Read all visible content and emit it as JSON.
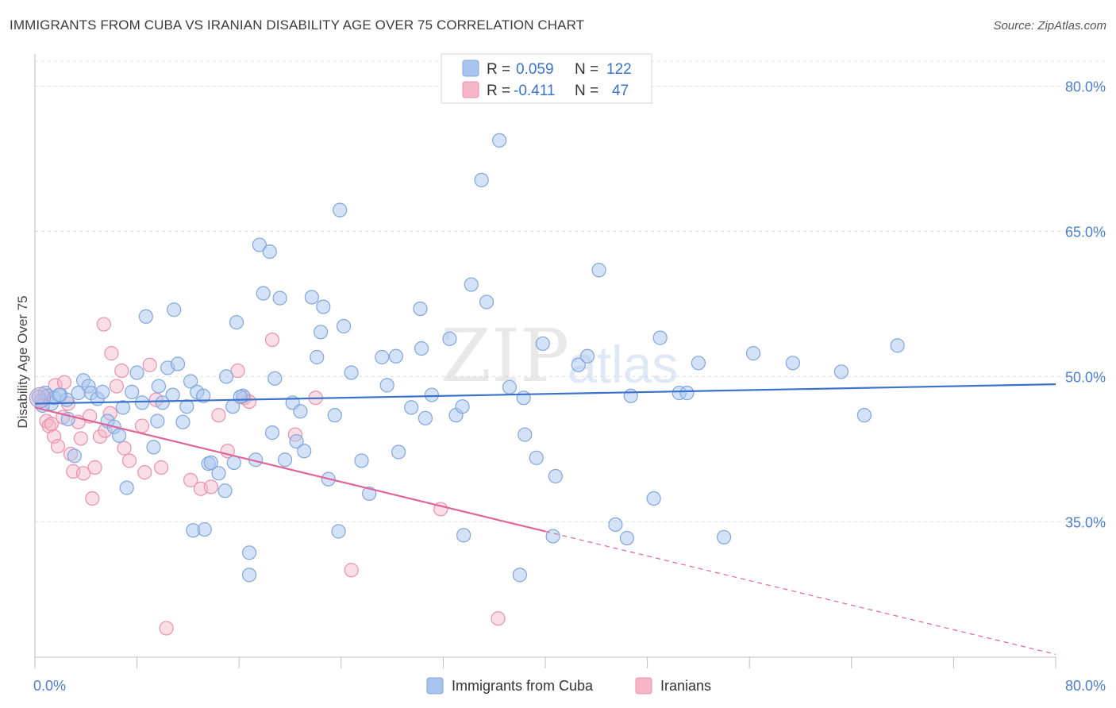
{
  "header": {
    "title": "IMMIGRANTS FROM CUBA VS IRANIAN DISABILITY AGE OVER 75 CORRELATION CHART",
    "source": "Source: ZipAtlas.com"
  },
  "legend": {
    "rows": [
      {
        "r_label": "R =",
        "r_value": "0.059",
        "n_label": "N =",
        "n_value": "122",
        "color": "#a9c5ef"
      },
      {
        "r_label": "R =",
        "r_value": "-0.411",
        "n_label": "N =",
        "n_value": "47",
        "color": "#f5b6c8"
      }
    ]
  },
  "bottom_legend": {
    "items": [
      {
        "label": "Immigrants from Cuba",
        "color": "#a9c5ef"
      },
      {
        "label": "Iranians",
        "color": "#f5b6c8"
      }
    ]
  },
  "watermark": {
    "zip": "ZIP",
    "atlas": "atlas"
  },
  "chart_data": {
    "type": "scatter",
    "title": "IMMIGRANTS FROM CUBA VS IRANIAN DISABILITY AGE OVER 75 CORRELATION CHART",
    "xlabel": "",
    "ylabel": "Disability Age Over 75",
    "xlim": [
      0,
      80
    ],
    "ylim": [
      21,
      83
    ],
    "x_tick_labels": [
      "0.0%",
      "80.0%"
    ],
    "y_ticks": [
      35,
      50,
      65,
      80
    ],
    "y_tick_labels": [
      "35.0%",
      "50.0%",
      "65.0%",
      "80.0%"
    ],
    "grid": true,
    "legend_position": "top-center",
    "colors": {
      "cuba": "#a9c5ef",
      "cuba_stroke": "#7fa6de",
      "cuba_line": "#3a72cc",
      "iran": "#f5b6c8",
      "iran_stroke": "#ec8fae",
      "iran_line": "#e0649a"
    },
    "series": [
      {
        "name": "Immigrants from Cuba",
        "r": 0.059,
        "n": 122,
        "trend": {
          "x0": 0,
          "y0": 47.2,
          "x1": 80,
          "y1": 49.2
        },
        "points": [
          [
            0.5,
            47.5
          ],
          [
            0.8,
            48.3
          ],
          [
            1.0,
            48.0
          ],
          [
            1.3,
            47.2
          ],
          [
            1.5,
            47.8
          ],
          [
            2.0,
            48.1
          ],
          [
            2.5,
            47.6
          ],
          [
            2.6,
            45.6
          ],
          [
            3.1,
            41.8
          ],
          [
            3.8,
            49.6
          ],
          [
            4.2,
            49.0
          ],
          [
            4.4,
            48.3
          ],
          [
            4.9,
            47.7
          ],
          [
            5.3,
            48.4
          ],
          [
            5.7,
            45.4
          ],
          [
            6.2,
            44.8
          ],
          [
            6.6,
            43.9
          ],
          [
            6.9,
            46.8
          ],
          [
            7.2,
            38.5
          ],
          [
            7.6,
            48.4
          ],
          [
            8.0,
            50.4
          ],
          [
            8.4,
            47.3
          ],
          [
            8.7,
            56.2
          ],
          [
            9.3,
            42.7
          ],
          [
            9.6,
            45.4
          ],
          [
            10.0,
            47.3
          ],
          [
            10.4,
            50.9
          ],
          [
            10.8,
            48.1
          ],
          [
            10.9,
            56.9
          ],
          [
            11.2,
            51.3
          ],
          [
            11.6,
            45.3
          ],
          [
            11.9,
            46.9
          ],
          [
            12.2,
            49.5
          ],
          [
            12.4,
            34.1
          ],
          [
            12.7,
            48.4
          ],
          [
            13.2,
            48.0
          ],
          [
            13.3,
            34.2
          ],
          [
            13.6,
            41.0
          ],
          [
            13.8,
            41.1
          ],
          [
            14.4,
            40.0
          ],
          [
            14.9,
            38.2
          ],
          [
            15.0,
            50.0
          ],
          [
            15.5,
            46.9
          ],
          [
            15.6,
            41.1
          ],
          [
            15.8,
            55.6
          ],
          [
            16.3,
            48.0
          ],
          [
            16.8,
            31.8
          ],
          [
            16.8,
            29.5
          ],
          [
            17.3,
            41.4
          ],
          [
            17.6,
            63.6
          ],
          [
            17.9,
            58.6
          ],
          [
            18.4,
            62.9
          ],
          [
            18.6,
            44.2
          ],
          [
            18.8,
            49.8
          ],
          [
            19.2,
            58.1
          ],
          [
            19.6,
            41.4
          ],
          [
            20.2,
            47.3
          ],
          [
            20.5,
            43.3
          ],
          [
            20.8,
            46.4
          ],
          [
            21.1,
            42.3
          ],
          [
            21.7,
            58.2
          ],
          [
            22.1,
            52.0
          ],
          [
            22.4,
            54.6
          ],
          [
            22.6,
            57.2
          ],
          [
            23.0,
            39.4
          ],
          [
            23.5,
            46.0
          ],
          [
            23.8,
            34.0
          ],
          [
            23.9,
            67.2
          ],
          [
            24.2,
            55.2
          ],
          [
            24.8,
            50.4
          ],
          [
            25.6,
            41.3
          ],
          [
            26.2,
            37.9
          ],
          [
            27.2,
            52.0
          ],
          [
            27.6,
            49.1
          ],
          [
            28.3,
            52.1
          ],
          [
            28.5,
            42.2
          ],
          [
            29.5,
            46.8
          ],
          [
            30.2,
            57.0
          ],
          [
            30.3,
            52.9
          ],
          [
            30.6,
            45.7
          ],
          [
            31.1,
            48.1
          ],
          [
            32.5,
            53.9
          ],
          [
            33.0,
            46.0
          ],
          [
            33.5,
            46.9
          ],
          [
            33.6,
            33.6
          ],
          [
            34.2,
            59.5
          ],
          [
            35.0,
            70.3
          ],
          [
            35.4,
            57.7
          ],
          [
            36.4,
            74.4
          ],
          [
            37.2,
            48.9
          ],
          [
            38.0,
            29.5
          ],
          [
            38.3,
            47.8
          ],
          [
            38.4,
            44.0
          ],
          [
            39.3,
            41.6
          ],
          [
            39.8,
            53.4
          ],
          [
            40.6,
            33.5
          ],
          [
            40.8,
            39.7
          ],
          [
            42.6,
            51.2
          ],
          [
            43.3,
            52.1
          ],
          [
            44.2,
            61.0
          ],
          [
            45.5,
            34.7
          ],
          [
            46.4,
            33.3
          ],
          [
            46.7,
            48.0
          ],
          [
            48.5,
            37.4
          ],
          [
            49.0,
            54.0
          ],
          [
            50.5,
            48.3
          ],
          [
            51.1,
            48.3
          ],
          [
            52.0,
            51.4
          ],
          [
            54.0,
            33.4
          ],
          [
            56.3,
            52.4
          ],
          [
            59.4,
            51.4
          ],
          [
            63.2,
            50.5
          ],
          [
            65.0,
            46.0
          ],
          [
            67.6,
            53.2
          ],
          [
            0.6,
            47.0
          ],
          [
            1.9,
            48.1
          ],
          [
            3.4,
            48.3
          ],
          [
            9.7,
            49.0
          ],
          [
            16.1,
            47.9
          ],
          [
            0.3,
            47.9
          ]
        ]
      },
      {
        "name": "Iranians",
        "r": -0.411,
        "n": 47,
        "trend": {
          "x0": 0,
          "y0": 46.8,
          "x1": 40,
          "y1": 34.0,
          "dash_to_x": 80,
          "dash_to_y": 21.3
        },
        "points": [
          [
            0.5,
            47.5
          ],
          [
            0.9,
            45.4
          ],
          [
            1.1,
            44.9
          ],
          [
            1.3,
            45.1
          ],
          [
            1.5,
            43.8
          ],
          [
            1.6,
            49.1
          ],
          [
            1.8,
            42.8
          ],
          [
            2.2,
            45.8
          ],
          [
            2.3,
            49.4
          ],
          [
            2.6,
            47.2
          ],
          [
            2.8,
            42.0
          ],
          [
            3.0,
            40.2
          ],
          [
            3.4,
            45.3
          ],
          [
            3.6,
            43.6
          ],
          [
            3.8,
            40.0
          ],
          [
            4.3,
            45.9
          ],
          [
            4.5,
            37.4
          ],
          [
            4.7,
            40.6
          ],
          [
            5.1,
            43.8
          ],
          [
            5.4,
            55.4
          ],
          [
            5.5,
            44.4
          ],
          [
            5.9,
            46.2
          ],
          [
            6.0,
            52.4
          ],
          [
            6.4,
            49.0
          ],
          [
            6.8,
            50.6
          ],
          [
            7.0,
            42.6
          ],
          [
            7.4,
            41.3
          ],
          [
            8.4,
            44.9
          ],
          [
            8.6,
            40.1
          ],
          [
            9.0,
            51.2
          ],
          [
            9.5,
            47.6
          ],
          [
            9.9,
            40.6
          ],
          [
            10.3,
            24.0
          ],
          [
            12.2,
            39.3
          ],
          [
            13.0,
            38.4
          ],
          [
            13.8,
            38.6
          ],
          [
            14.4,
            46.0
          ],
          [
            15.1,
            42.3
          ],
          [
            15.9,
            50.6
          ],
          [
            16.4,
            47.8
          ],
          [
            16.8,
            47.4
          ],
          [
            18.6,
            53.8
          ],
          [
            20.4,
            44.0
          ],
          [
            22.0,
            47.8
          ],
          [
            24.8,
            30.0
          ],
          [
            31.8,
            36.3
          ],
          [
            36.3,
            25.0
          ]
        ]
      }
    ]
  }
}
